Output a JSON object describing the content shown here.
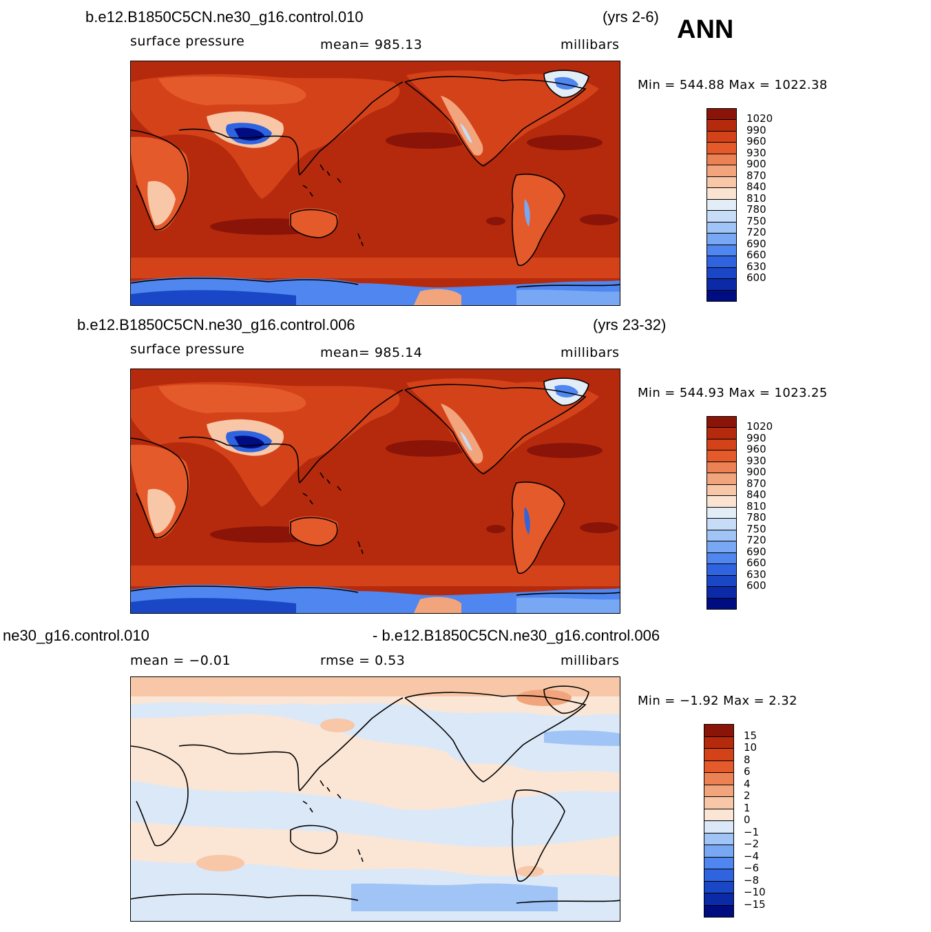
{
  "season": "ANN",
  "colors": {
    "abs_levels": [
      "#000d82",
      "#0a2aa8",
      "#1a47c6",
      "#2f63e0",
      "#4f86ef",
      "#78a7f4",
      "#a1c4f6",
      "#c7dcf6",
      "#e2edf8",
      "#fbe3d2",
      "#f7c7a8",
      "#f2a57c",
      "#ec8153",
      "#e55a2b",
      "#d4421a",
      "#b52a0c",
      "#8a1408"
    ],
    "diff_levels": [
      "#000d82",
      "#0a2aa8",
      "#1a47c6",
      "#2f63e0",
      "#4f86ef",
      "#78a7f4",
      "#a1c4f6",
      "#dbe8f8",
      "#fbe6d6",
      "#f7c7a8",
      "#f2a57c",
      "#ec8153",
      "#e55a2b",
      "#d4421a",
      "#b52a0c",
      "#8a1408"
    ]
  },
  "panels": [
    {
      "case_title": "b.e12.B1850C5CN.ne30_g16.control.010",
      "years": "(yrs 2-6)",
      "variable": "surface pressure",
      "stat": "mean= 985.13",
      "units": "millibars",
      "minmax": "Min = 544.88 Max = 1022.38"
    },
    {
      "case_title": "b.e12.B1850C5CN.ne30_g16.control.006",
      "years": "(yrs 23-32)",
      "variable": "surface pressure",
      "stat": "mean= 985.14",
      "units": "millibars",
      "minmax": "Min = 544.93 Max = 1023.25"
    },
    {
      "case_title_left": "ne30_g16.control.010",
      "case_title_right": "- b.e12.B1850C5CN.ne30_g16.control.006",
      "stat_left": "mean =  −0.01",
      "stat_mid": "rmse =    0.53",
      "units": "millibars",
      "minmax": "Min =  −1.92 Max =    2.32"
    }
  ],
  "colorbar_abs": [
    "1020",
    "990",
    "960",
    "930",
    "900",
    "870",
    "840",
    "810",
    "780",
    "750",
    "720",
    "690",
    "660",
    "630",
    "600"
  ],
  "colorbar_diff": [
    "15",
    "10",
    "8",
    "6",
    "4",
    "2",
    "1",
    "0",
    "−1",
    "−2",
    "−4",
    "−6",
    "−8",
    "−10",
    "−15"
  ]
}
